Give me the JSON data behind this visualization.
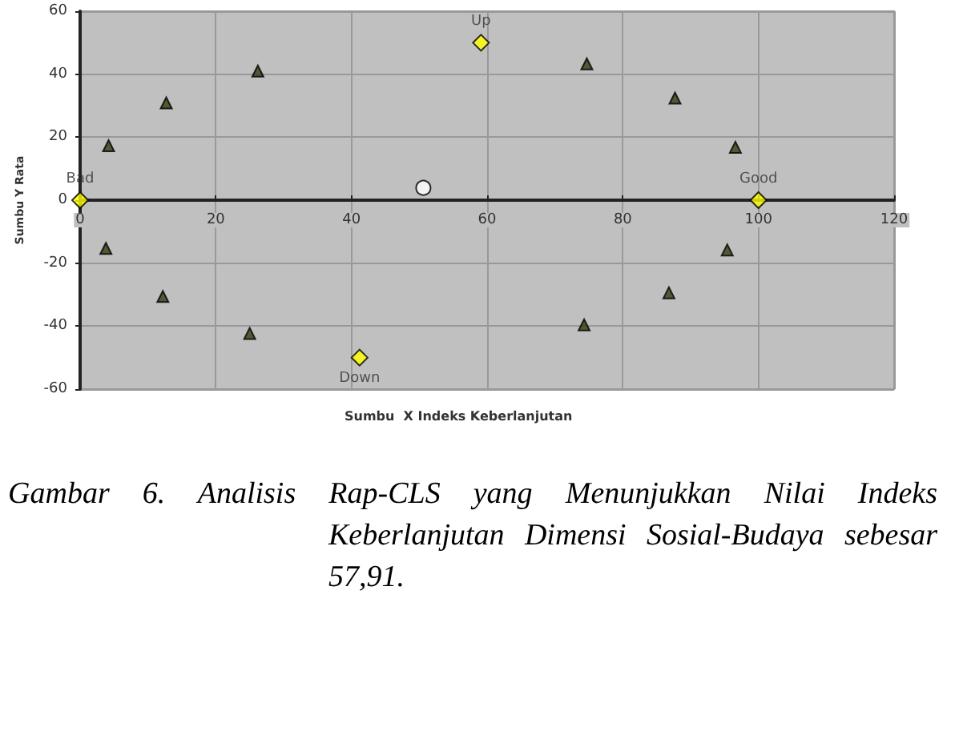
{
  "chart_data": {
    "type": "scatter",
    "xlabel": "Sumbu  X Indeks Keberlanjutan",
    "ylabel": "Sumbu Y Rata",
    "series": [
      {
        "color": "#3b3b12",
        "marker": "triangle",
        "x": [
          4.2,
          12.7,
          26.2,
          74.7,
          87.7,
          96.6,
          95.4,
          86.8,
          74.3,
          25,
          12.2,
          3.8
        ],
        "values": [
          17.3,
          30.9,
          41,
          43.3,
          32.4,
          16.8,
          -15.8,
          -29.4,
          -39.6,
          -42.3,
          -30.6,
          -15.3
        ]
      },
      {
        "color": "#ffff00",
        "marker": "diamond",
        "x": [
          0,
          59.1,
          100,
          41.2
        ],
        "values": [
          0,
          50,
          0,
          -50
        ]
      },
      {
        "color": "#ffffff",
        "marker": "circle",
        "x": [
          50.6
        ],
        "values": [
          3.9
        ]
      }
    ],
    "annotations": [
      {
        "text": "Bad",
        "x": 0,
        "y": 0
      },
      {
        "text": "Up",
        "x": 59.1,
        "y": 50
      },
      {
        "text": "Good",
        "x": 100,
        "y": 0
      },
      {
        "text": "Down",
        "x": 41.2,
        "y": -50
      },
      "Gambar 6. Analisis Rap-CLS yang Menunjukkan Nilai Indeks Keberlanjutan Dimensi Sosial-Budaya sebesar 57,91."
    ],
    "xlim": [
      0,
      120
    ],
    "xticks": [
      0,
      20,
      40,
      60,
      80,
      100,
      120
    ],
    "ylim": [
      -60,
      60
    ],
    "yticks": [
      -60,
      -40,
      -20,
      0,
      20,
      40,
      60
    ],
    "grid": true
  }
}
